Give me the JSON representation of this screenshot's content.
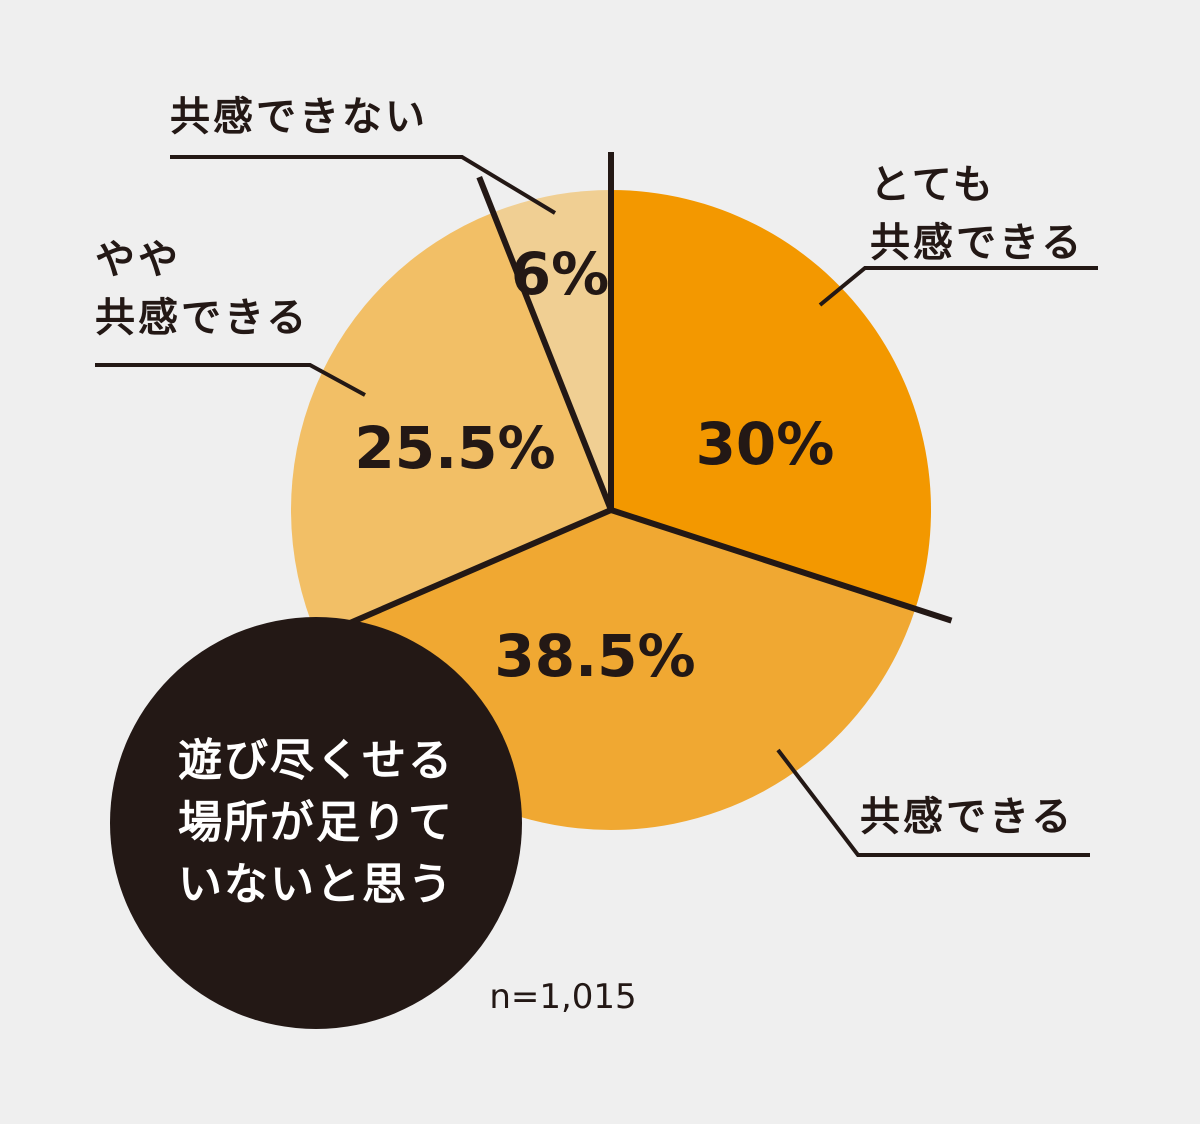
{
  "chart_data": {
    "type": "pie",
    "title": "遊び尽くせる\n場所が足りて\nいないと思う",
    "note": "n=1,015",
    "categories": [
      "とても\n共感できる",
      "共感できる",
      "やや\n共感できる",
      "共感できない"
    ],
    "values": [
      30,
      38.5,
      25.5,
      6
    ],
    "value_labels": [
      "30%",
      "38.5%",
      "25.5%",
      "6%"
    ],
    "colors": [
      "#f39800",
      "#f0a832",
      "#f2bf66",
      "#f0cf93"
    ]
  }
}
